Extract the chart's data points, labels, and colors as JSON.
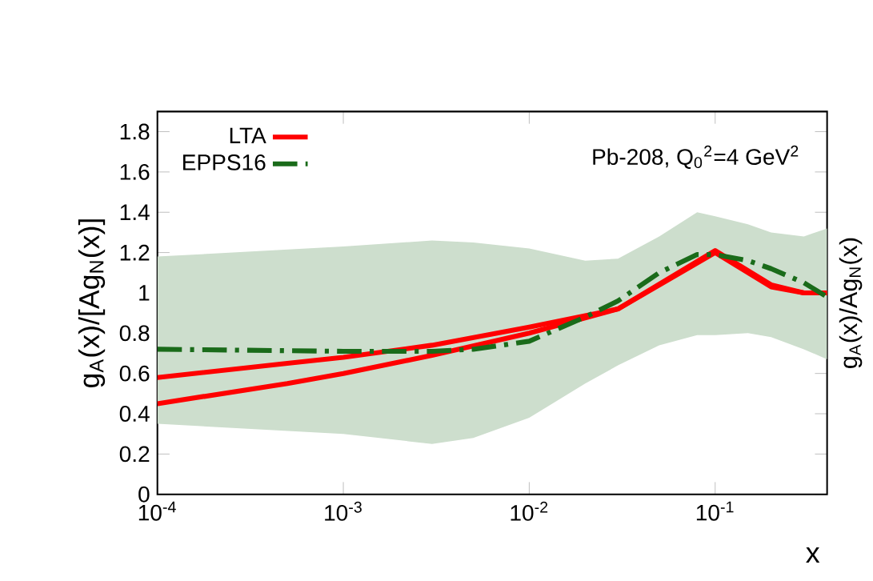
{
  "chart_data": {
    "type": "line",
    "xlabel": "x",
    "ylabel": "g$_{A}$(x)/[Ag$_{N}$(x)]",
    "y2label": "g$_{A}$(x)/Ag$_{N}$(x)",
    "log": "x",
    "xlim": [
      0.0001,
      0.4
    ],
    "ylim": [
      0,
      1.9
    ],
    "xticks": [
      {
        "value": 0.0001,
        "label": "10$^{-4}$"
      },
      {
        "value": 0.001,
        "label": "10$^{-3}$"
      },
      {
        "value": 0.01,
        "label": "10$^{-2}$"
      },
      {
        "value": 0.1,
        "label": "10$^{-1}$"
      }
    ],
    "yticks": [
      0,
      0.2,
      0.4,
      0.6,
      0.8,
      1,
      1.2,
      1.4,
      1.6,
      1.8
    ],
    "grid": false,
    "legend": "top left",
    "annotations": [
      "Pb-208, Q$_{0}$$^{2}$=4 GeV$^{2}$"
    ],
    "series": [
      {
        "name": "LTA",
        "color": "#ff0000",
        "line_style": "solid",
        "x": [
          0.0001,
          0.0005,
          0.001,
          0.003,
          0.01,
          0.03,
          0.1,
          0.2,
          0.3,
          0.4
        ],
        "values": [
          0.58,
          0.65,
          0.68,
          0.74,
          0.83,
          0.92,
          1.21,
          1.04,
          1.0,
          1.0
        ],
        "lower": [
          0.45,
          0.55,
          0.6,
          0.69,
          0.8,
          0.92,
          1.2,
          1.03,
          1.0,
          1.0
        ],
        "upper": [
          0.58,
          0.65,
          0.68,
          0.74,
          0.83,
          0.92,
          1.21,
          1.04,
          1.0,
          1.0
        ]
      },
      {
        "color": "#ff0000",
        "line_style": "solid",
        "x": [
          0.0001,
          0.0005,
          0.001,
          0.003,
          0.01,
          0.03,
          0.1,
          0.2,
          0.3,
          0.4
        ],
        "values": [
          0.45,
          0.55,
          0.6,
          0.69,
          0.8,
          0.92,
          1.2,
          1.03,
          1.0,
          1.0
        ]
      },
      {
        "name": "EPPS16",
        "color": "#1a6b1a",
        "line_style": "dashdot",
        "x": [
          0.0001,
          0.001,
          0.003,
          0.005,
          0.01,
          0.02,
          0.03,
          0.05,
          0.08,
          0.1,
          0.15,
          0.2,
          0.3,
          0.4
        ],
        "values": [
          0.72,
          0.71,
          0.71,
          0.72,
          0.76,
          0.88,
          0.96,
          1.1,
          1.19,
          1.19,
          1.16,
          1.12,
          1.05,
          0.98
        ],
        "lower": [
          0.35,
          0.3,
          0.25,
          0.28,
          0.38,
          0.55,
          0.64,
          0.74,
          0.79,
          0.79,
          0.8,
          0.78,
          0.72,
          0.67
        ],
        "upper": [
          1.18,
          1.23,
          1.26,
          1.25,
          1.22,
          1.16,
          1.17,
          1.28,
          1.4,
          1.38,
          1.34,
          1.3,
          1.28,
          1.32
        ]
      }
    ]
  }
}
